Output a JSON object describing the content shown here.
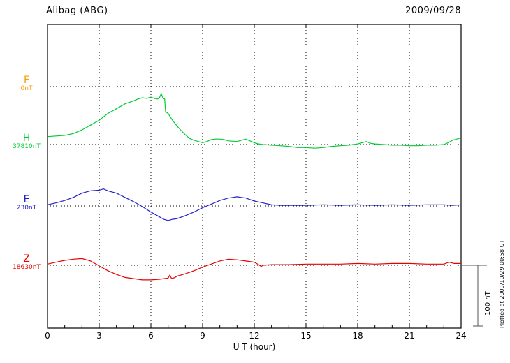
{
  "plotted_note": "Plotted at 2009/10/29 00:58 UT",
  "chart_data": {
    "type": "line",
    "title": "Alibag (ABG)",
    "date": "2009/09/28",
    "xlabel": "U T (hour)",
    "x_range": [
      0,
      24
    ],
    "x_ticks": [
      0,
      3,
      6,
      9,
      12,
      15,
      18,
      21,
      24
    ],
    "grid": "dotted",
    "scale_bar": {
      "label": "100 nT",
      "nT": 100
    },
    "point_format": "[UT hour, nT offset from base value]",
    "series": [
      {
        "name": "F",
        "base_label": "0nT",
        "base_nT": 0,
        "color": "#ff9900",
        "points": []
      },
      {
        "name": "H",
        "base_label": "37810nT",
        "base_nT": 37810,
        "color": "#00cc33",
        "points": [
          [
            0,
            13
          ],
          [
            0.5,
            14
          ],
          [
            1,
            15
          ],
          [
            1.5,
            18
          ],
          [
            2,
            24
          ],
          [
            2.5,
            32
          ],
          [
            3,
            40
          ],
          [
            3.5,
            51
          ],
          [
            4,
            59
          ],
          [
            4.5,
            67
          ],
          [
            5,
            72
          ],
          [
            5.25,
            75
          ],
          [
            5.5,
            77
          ],
          [
            5.75,
            76
          ],
          [
            6,
            78
          ],
          [
            6.2,
            76
          ],
          [
            6.4,
            75
          ],
          [
            6.5,
            77
          ],
          [
            6.6,
            84
          ],
          [
            6.7,
            76
          ],
          [
            6.8,
            75
          ],
          [
            6.85,
            54
          ],
          [
            7,
            51
          ],
          [
            7.25,
            40
          ],
          [
            7.5,
            31
          ],
          [
            7.75,
            23
          ],
          [
            8,
            16
          ],
          [
            8.25,
            10
          ],
          [
            8.5,
            7
          ],
          [
            8.75,
            5
          ],
          [
            9,
            3
          ],
          [
            9.25,
            5
          ],
          [
            9.5,
            8
          ],
          [
            9.75,
            9
          ],
          [
            10,
            9
          ],
          [
            10.25,
            8
          ],
          [
            10.5,
            6
          ],
          [
            11,
            5
          ],
          [
            11.25,
            7
          ],
          [
            11.5,
            9
          ],
          [
            11.75,
            6
          ],
          [
            12,
            3
          ],
          [
            12.25,
            1
          ],
          [
            12.5,
            0
          ],
          [
            13,
            -1
          ],
          [
            13.5,
            -2
          ],
          [
            14,
            -3
          ],
          [
            14.5,
            -5
          ],
          [
            15,
            -5
          ],
          [
            15.5,
            -6
          ],
          [
            16,
            -5
          ],
          [
            16.5,
            -3
          ],
          [
            17,
            -2
          ],
          [
            17.5,
            -1
          ],
          [
            18,
            1
          ],
          [
            18.25,
            3
          ],
          [
            18.5,
            5
          ],
          [
            18.75,
            2
          ],
          [
            19,
            1
          ],
          [
            19.5,
            0
          ],
          [
            20,
            -1
          ],
          [
            20.5,
            -1
          ],
          [
            21,
            -2
          ],
          [
            21.5,
            -2
          ],
          [
            22,
            -1
          ],
          [
            22.5,
            -1
          ],
          [
            23,
            0
          ],
          [
            23.25,
            3
          ],
          [
            23.5,
            7
          ],
          [
            23.75,
            9
          ],
          [
            24,
            11
          ]
        ]
      },
      {
        "name": "E",
        "base_label": "230nT",
        "base_nT": 230,
        "color": "#2222cc",
        "points": [
          [
            0,
            2
          ],
          [
            0.5,
            5
          ],
          [
            1,
            9
          ],
          [
            1.5,
            14
          ],
          [
            2,
            21
          ],
          [
            2.5,
            25
          ],
          [
            3,
            26
          ],
          [
            3.25,
            28
          ],
          [
            3.5,
            25
          ],
          [
            4,
            21
          ],
          [
            4.5,
            14
          ],
          [
            5,
            7
          ],
          [
            5.5,
            -1
          ],
          [
            6,
            -10
          ],
          [
            6.5,
            -18
          ],
          [
            6.75,
            -22
          ],
          [
            7,
            -24
          ],
          [
            7.25,
            -22
          ],
          [
            7.5,
            -21
          ],
          [
            8,
            -16
          ],
          [
            8.5,
            -10
          ],
          [
            9,
            -3
          ],
          [
            9.5,
            3
          ],
          [
            10,
            9
          ],
          [
            10.5,
            13
          ],
          [
            10.75,
            14
          ],
          [
            11,
            15
          ],
          [
            11.25,
            14
          ],
          [
            11.5,
            13
          ],
          [
            12,
            8
          ],
          [
            12.5,
            5
          ],
          [
            13,
            2
          ],
          [
            13.5,
            1
          ],
          [
            14,
            1
          ],
          [
            15,
            1
          ],
          [
            16,
            2
          ],
          [
            17,
            1
          ],
          [
            18,
            2
          ],
          [
            19,
            1
          ],
          [
            20,
            2
          ],
          [
            21,
            1
          ],
          [
            22,
            2
          ],
          [
            23,
            2
          ],
          [
            23.5,
            1
          ],
          [
            24,
            2
          ]
        ]
      },
      {
        "name": "Z",
        "base_label": "18630nT",
        "base_nT": 18630,
        "color": "#e60000",
        "points": [
          [
            0,
            2
          ],
          [
            0.5,
            5
          ],
          [
            1,
            8
          ],
          [
            1.5,
            10
          ],
          [
            2,
            11
          ],
          [
            2.5,
            7
          ],
          [
            3,
            -1
          ],
          [
            3.5,
            -9
          ],
          [
            4,
            -15
          ],
          [
            4.5,
            -20
          ],
          [
            5,
            -22
          ],
          [
            5.5,
            -24
          ],
          [
            6,
            -24
          ],
          [
            6.5,
            -23
          ],
          [
            7,
            -21
          ],
          [
            7.1,
            -16
          ],
          [
            7.2,
            -22
          ],
          [
            7.4,
            -20
          ],
          [
            7.5,
            -18
          ],
          [
            8,
            -14
          ],
          [
            8.5,
            -9
          ],
          [
            9,
            -3
          ],
          [
            9.5,
            2
          ],
          [
            10,
            7
          ],
          [
            10.5,
            10
          ],
          [
            11,
            9
          ],
          [
            11.5,
            7
          ],
          [
            12,
            5
          ],
          [
            12.25,
            1
          ],
          [
            12.4,
            -2
          ],
          [
            12.5,
            0
          ],
          [
            13,
            1
          ],
          [
            13.5,
            1
          ],
          [
            14,
            1
          ],
          [
            15,
            2
          ],
          [
            16,
            2
          ],
          [
            17,
            2
          ],
          [
            18,
            3
          ],
          [
            19,
            2
          ],
          [
            20,
            3
          ],
          [
            21,
            3
          ],
          [
            22,
            2
          ],
          [
            23,
            2
          ],
          [
            23.3,
            5
          ],
          [
            23.6,
            3
          ],
          [
            24,
            3
          ]
        ]
      }
    ]
  }
}
